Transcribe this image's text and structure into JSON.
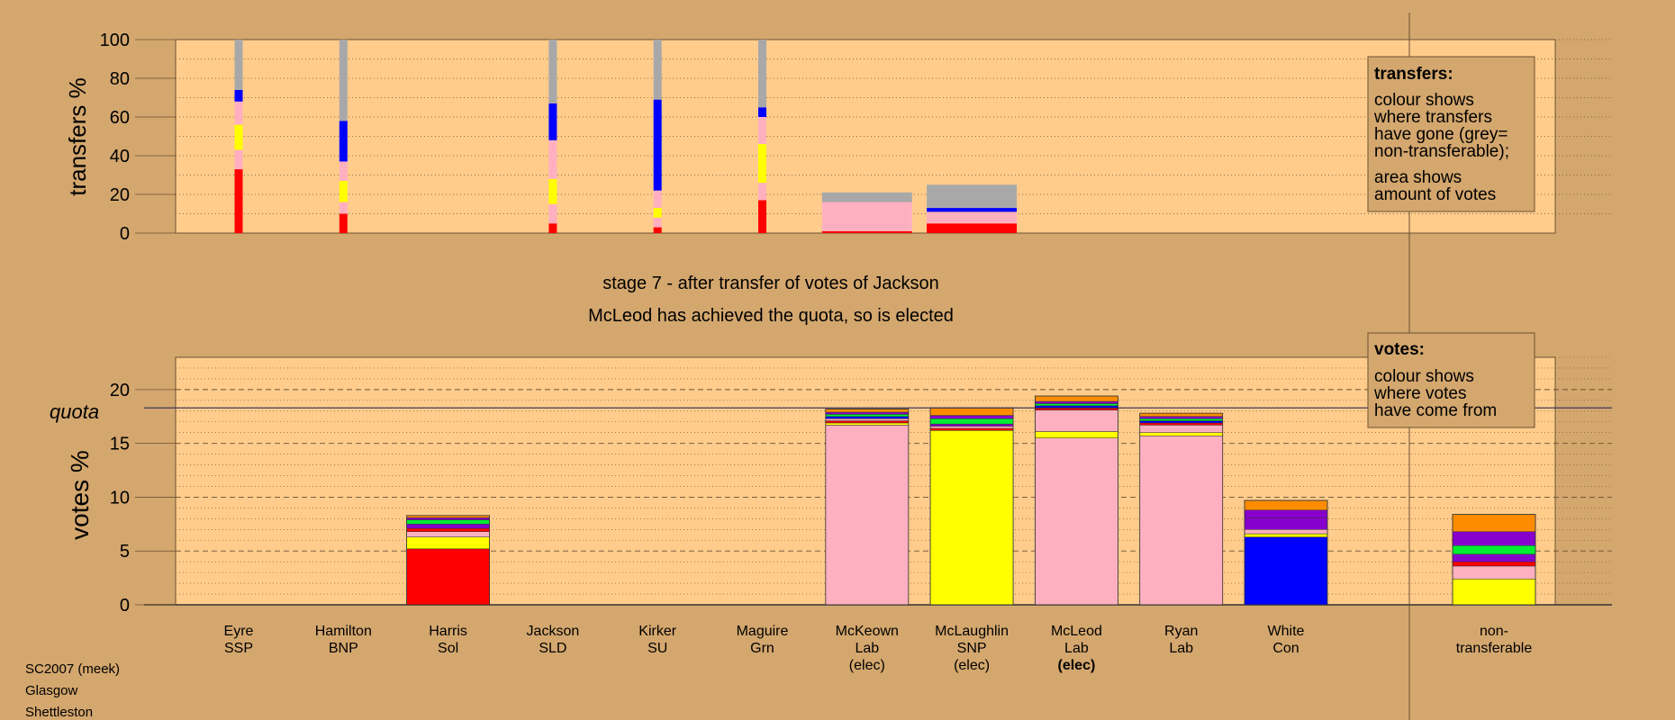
{
  "stage_title": "stage 7 - after transfer of votes of Jackson",
  "stage_subtitle": "McLeod has achieved the quota, so is elected",
  "footer": [
    "SC2007 (meek)",
    "Glasgow",
    "Shettleston"
  ],
  "colors": {
    "background": "#D4A76E",
    "plot_bg": "#FFCC8C",
    "SSP": "#FF0000",
    "Lab": "#FFB0C0",
    "SNP": "#FFFF00",
    "Con": "#0000FF",
    "Grn": "#00EE33",
    "Sol": "#8800CC",
    "other": "#FF8C00",
    "nontransferable": "#A8A8A8"
  },
  "chart_data": [
    {
      "type": "bar",
      "name": "transfers",
      "ylabel": "transfers %",
      "ylim": [
        0,
        100
      ],
      "yticks": [
        0,
        20,
        40,
        60,
        80,
        100
      ],
      "legend": {
        "position": "top-right",
        "title": "transfers:",
        "lines": [
          "colour shows",
          "where transfers",
          "have gone (grey=",
          "non-transferable);"
        ],
        "lines2": [
          "area shows",
          "amount of votes"
        ]
      },
      "candidates": [
        "Eyre",
        "Hamilton",
        "Harris",
        "Jackson",
        "Kirker",
        "Maguire",
        "McKeown",
        "McLaughlin"
      ],
      "bars": [
        {
          "candidate": "Eyre",
          "width": "narrow",
          "segments": [
            {
              "color": "SSP",
              "value": 33
            },
            {
              "color": "Lab",
              "value": 10
            },
            {
              "color": "SNP",
              "value": 13
            },
            {
              "color": "Lab",
              "value": 12
            },
            {
              "color": "Con",
              "value": 6
            },
            {
              "color": "nontransferable",
              "value": 26
            }
          ]
        },
        {
          "candidate": "Hamilton",
          "width": "narrow",
          "segments": [
            {
              "color": "SSP",
              "value": 10
            },
            {
              "color": "Lab",
              "value": 6
            },
            {
              "color": "SNP",
              "value": 11
            },
            {
              "color": "Lab",
              "value": 10
            },
            {
              "color": "Con",
              "value": 21
            },
            {
              "color": "nontransferable",
              "value": 42
            }
          ]
        },
        {
          "candidate": "Harris",
          "width": "none",
          "segments": []
        },
        {
          "candidate": "Jackson",
          "width": "narrow",
          "segments": [
            {
              "color": "SSP",
              "value": 5
            },
            {
              "color": "Lab",
              "value": 10
            },
            {
              "color": "SNP",
              "value": 13
            },
            {
              "color": "Lab",
              "value": 20
            },
            {
              "color": "Con",
              "value": 19
            },
            {
              "color": "nontransferable",
              "value": 33
            }
          ]
        },
        {
          "candidate": "Kirker",
          "width": "narrow",
          "segments": [
            {
              "color": "SSP",
              "value": 3
            },
            {
              "color": "Lab",
              "value": 5
            },
            {
              "color": "SNP",
              "value": 5
            },
            {
              "color": "Lab",
              "value": 9
            },
            {
              "color": "Con",
              "value": 47
            },
            {
              "color": "nontransferable",
              "value": 31
            }
          ]
        },
        {
          "candidate": "Maguire",
          "width": "narrow",
          "segments": [
            {
              "color": "SSP",
              "value": 17
            },
            {
              "color": "Lab",
              "value": 9
            },
            {
              "color": "SNP",
              "value": 20
            },
            {
              "color": "Lab",
              "value": 14
            },
            {
              "color": "Con",
              "value": 5
            },
            {
              "color": "nontransferable",
              "value": 35
            }
          ]
        },
        {
          "candidate": "McKeown",
          "width": "wide",
          "segments": [
            {
              "color": "SSP",
              "value": 1
            },
            {
              "color": "Lab",
              "value": 15
            },
            {
              "color": "nontransferable",
              "value": 5
            }
          ]
        },
        {
          "candidate": "McLaughlin",
          "width": "wide",
          "segments": [
            {
              "color": "SSP",
              "value": 5
            },
            {
              "color": "Lab",
              "value": 6
            },
            {
              "color": "Con",
              "value": 2
            },
            {
              "color": "nontransferable",
              "value": 12
            }
          ]
        }
      ]
    },
    {
      "type": "bar",
      "name": "votes",
      "ylabel": "votes %",
      "ylim": [
        0,
        23
      ],
      "yticks": [
        0,
        5,
        10,
        15,
        20
      ],
      "quota": 18.3,
      "quota_label": "quota",
      "legend": {
        "position": "top-right",
        "title": "votes:",
        "lines": [
          "colour shows",
          "where votes",
          "have come from"
        ]
      },
      "categories": [
        {
          "name": "Eyre",
          "party": "SSP",
          "status": ""
        },
        {
          "name": "Hamilton",
          "party": "BNP",
          "status": ""
        },
        {
          "name": "Harris",
          "party": "Sol",
          "status": ""
        },
        {
          "name": "Jackson",
          "party": "SLD",
          "status": ""
        },
        {
          "name": "Kirker",
          "party": "SU",
          "status": ""
        },
        {
          "name": "Maguire",
          "party": "Grn",
          "status": ""
        },
        {
          "name": "McKeown",
          "party": "Lab",
          "status": "(elec)"
        },
        {
          "name": "McLaughlin",
          "party": "SNP",
          "status": "(elec)"
        },
        {
          "name": "McLeod",
          "party": "Lab",
          "status": "(elec)",
          "bold": true
        },
        {
          "name": "Ryan",
          "party": "Lab",
          "status": ""
        },
        {
          "name": "White",
          "party": "Con",
          "status": ""
        },
        {
          "name": "non-",
          "party": "transferable",
          "status": "",
          "separate": true
        }
      ],
      "bars": [
        {
          "category": "Eyre",
          "segments": []
        },
        {
          "category": "Hamilton",
          "segments": []
        },
        {
          "category": "Harris",
          "segments": [
            {
              "color": "SSP",
              "value": 5.2
            },
            {
              "color": "SNP",
              "value": 1.1
            },
            {
              "color": "Lab",
              "value": 0.5
            },
            {
              "color": "SSP",
              "value": 0.3
            },
            {
              "color": "Sol",
              "value": 0.4
            },
            {
              "color": "Grn",
              "value": 0.4
            },
            {
              "color": "Sol",
              "value": 0.2
            },
            {
              "color": "other",
              "value": 0.2
            }
          ]
        },
        {
          "category": "Jackson",
          "segments": []
        },
        {
          "category": "Kirker",
          "segments": []
        },
        {
          "category": "Maguire",
          "segments": []
        },
        {
          "category": "McKeown",
          "segments": [
            {
              "color": "Lab",
              "value": 16.7
            },
            {
              "color": "SNP",
              "value": 0.2
            },
            {
              "color": "SSP",
              "value": 0.2
            },
            {
              "color": "Lab",
              "value": 0.2
            },
            {
              "color": "Con",
              "value": 0.2
            },
            {
              "color": "Grn",
              "value": 0.2
            },
            {
              "color": "Sol",
              "value": 0.2
            },
            {
              "color": "other",
              "value": 0.3
            }
          ]
        },
        {
          "category": "McLaughlin",
          "segments": [
            {
              "color": "SNP",
              "value": 16.2
            },
            {
              "color": "SSP",
              "value": 0.2
            },
            {
              "color": "Lab",
              "value": 0.2
            },
            {
              "color": "Sol",
              "value": 0.2
            },
            {
              "color": "Grn",
              "value": 0.5
            },
            {
              "color": "Sol",
              "value": 0.3
            },
            {
              "color": "other",
              "value": 0.7
            }
          ]
        },
        {
          "category": "McLeod",
          "segments": [
            {
              "color": "Lab",
              "value": 15.5
            },
            {
              "color": "SNP",
              "value": 0.6
            },
            {
              "color": "Lab",
              "value": 2.0
            },
            {
              "color": "SSP",
              "value": 0.2
            },
            {
              "color": "Con",
              "value": 0.2
            },
            {
              "color": "Grn",
              "value": 0.2
            },
            {
              "color": "Sol",
              "value": 0.2
            },
            {
              "color": "other",
              "value": 0.5
            }
          ]
        },
        {
          "category": "Ryan",
          "segments": [
            {
              "color": "Lab",
              "value": 15.7
            },
            {
              "color": "SNP",
              "value": 0.3
            },
            {
              "color": "Lab",
              "value": 0.7
            },
            {
              "color": "SSP",
              "value": 0.2
            },
            {
              "color": "Con",
              "value": 0.2
            },
            {
              "color": "Grn",
              "value": 0.2
            },
            {
              "color": "Sol",
              "value": 0.2
            },
            {
              "color": "other",
              "value": 0.3
            }
          ]
        },
        {
          "category": "White",
          "segments": [
            {
              "color": "Con",
              "value": 6.3
            },
            {
              "color": "SNP",
              "value": 0.3
            },
            {
              "color": "Lab",
              "value": 0.4
            },
            {
              "color": "Sol",
              "value": 1.1
            },
            {
              "color": "Sol",
              "value": 0.7
            },
            {
              "color": "other",
              "value": 0.9
            }
          ]
        },
        {
          "category": "non-",
          "segments": [
            {
              "color": "SNP",
              "value": 2.4
            },
            {
              "color": "Lab",
              "value": 1.2
            },
            {
              "color": "SSP",
              "value": 0.4
            },
            {
              "color": "Sol",
              "value": 0.7
            },
            {
              "color": "Grn",
              "value": 0.8
            },
            {
              "color": "Sol",
              "value": 1.3
            },
            {
              "color": "other",
              "value": 1.6
            }
          ]
        }
      ]
    }
  ]
}
